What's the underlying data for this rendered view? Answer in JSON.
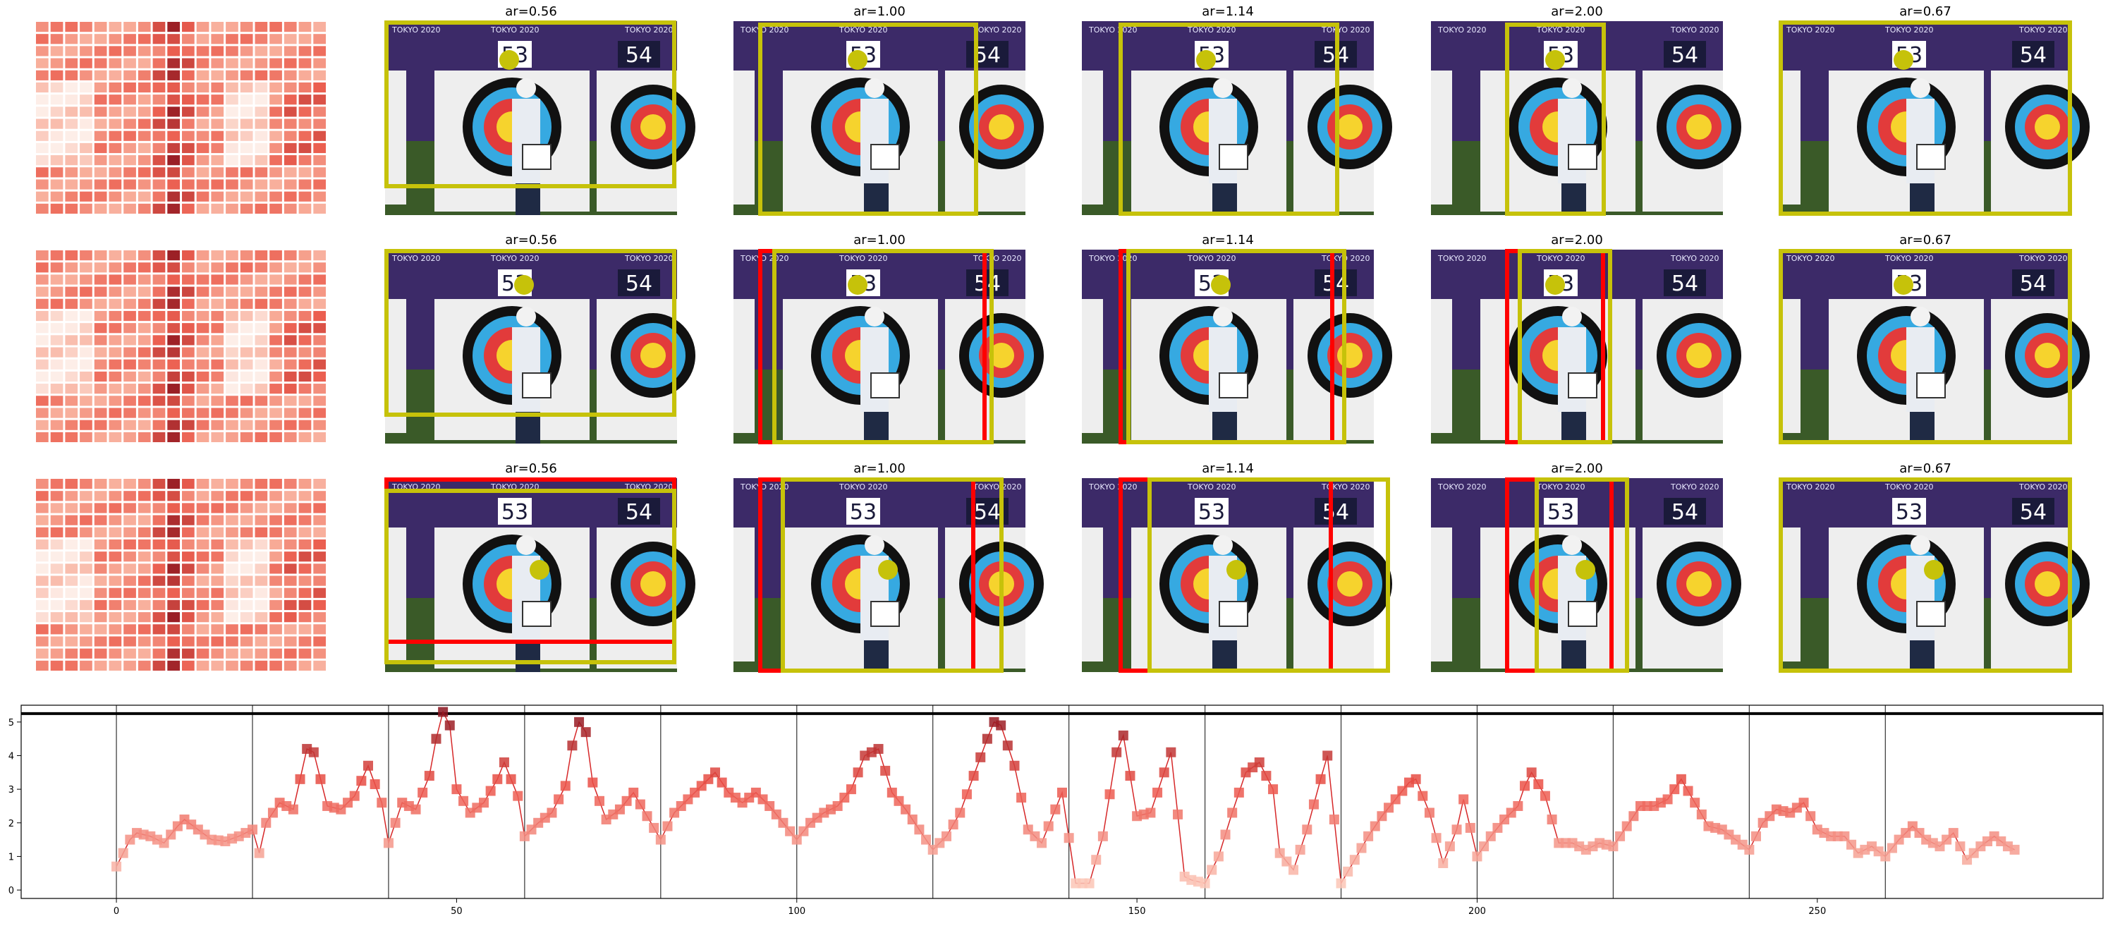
{
  "grid": {
    "rows": 3,
    "aspect_ratios": [
      "ar=0.56",
      "ar=1.00",
      "ar=1.14",
      "ar=2.00",
      "ar=0.67"
    ],
    "photo_text": {
      "left_number": "53",
      "right_number": "54",
      "banner": "TOKYO 2020"
    },
    "colors": {
      "crop_box": "#c6c20a",
      "rejected_box": "#ff0000",
      "point": "#c6c20a",
      "sky": "#3c2a68",
      "target_board": "#eeeeee"
    }
  },
  "chart_data": {
    "type": "line",
    "x_ticks": [
      0,
      50,
      100,
      150,
      200,
      250
    ],
    "y_ticks": [
      0,
      1,
      2,
      3,
      4,
      5
    ],
    "xlim": [
      -14,
      292
    ],
    "ylim": [
      -0.25,
      5.5
    ],
    "horizontal_line_y": 5.25,
    "vertical_lines_x": [
      0,
      20,
      40,
      60,
      80,
      100,
      120,
      140,
      160,
      180,
      200,
      220,
      240,
      260
    ],
    "marker": "square",
    "line_color": "#d62728",
    "x_max": 279,
    "anchors": [
      [
        0,
        0.7
      ],
      [
        2,
        1.5
      ],
      [
        3,
        1.7
      ],
      [
        5,
        1.6
      ],
      [
        7,
        1.4
      ],
      [
        9,
        1.9
      ],
      [
        10,
        2.1
      ],
      [
        12,
        1.8
      ],
      [
        14,
        1.5
      ],
      [
        16,
        1.45
      ],
      [
        18,
        1.6
      ],
      [
        20,
        1.8
      ],
      [
        21,
        1.1
      ],
      [
        22,
        2.0
      ],
      [
        24,
        2.6
      ],
      [
        26,
        2.4
      ],
      [
        28,
        4.2
      ],
      [
        29,
        4.1
      ],
      [
        31,
        2.5
      ],
      [
        33,
        2.4
      ],
      [
        35,
        2.8
      ],
      [
        37,
        3.7
      ],
      [
        39,
        2.6
      ],
      [
        40,
        1.4
      ],
      [
        42,
        2.6
      ],
      [
        44,
        2.4
      ],
      [
        46,
        3.4
      ],
      [
        47,
        4.5
      ],
      [
        48,
        5.3
      ],
      [
        49,
        4.9
      ],
      [
        50,
        3.0
      ],
      [
        52,
        2.3
      ],
      [
        54,
        2.6
      ],
      [
        56,
        3.3
      ],
      [
        57,
        3.8
      ],
      [
        59,
        2.8
      ],
      [
        60,
        1.6
      ],
      [
        62,
        2.0
      ],
      [
        64,
        2.3
      ],
      [
        66,
        3.1
      ],
      [
        67,
        4.3
      ],
      [
        68,
        5.0
      ],
      [
        69,
        4.7
      ],
      [
        70,
        3.2
      ],
      [
        72,
        2.1
      ],
      [
        74,
        2.4
      ],
      [
        76,
        2.9
      ],
      [
        78,
        2.2
      ],
      [
        80,
        1.5
      ],
      [
        82,
        2.3
      ],
      [
        84,
        2.7
      ],
      [
        86,
        3.1
      ],
      [
        88,
        3.5
      ],
      [
        90,
        2.9
      ],
      [
        92,
        2.6
      ],
      [
        94,
        2.9
      ],
      [
        96,
        2.5
      ],
      [
        98,
        2.0
      ],
      [
        100,
        1.5
      ],
      [
        102,
        2.0
      ],
      [
        104,
        2.3
      ],
      [
        106,
        2.5
      ],
      [
        108,
        3.0
      ],
      [
        110,
        4.0
      ],
      [
        112,
        4.2
      ],
      [
        114,
        2.9
      ],
      [
        116,
        2.4
      ],
      [
        118,
        1.8
      ],
      [
        120,
        1.2
      ],
      [
        122,
        1.6
      ],
      [
        124,
        2.3
      ],
      [
        126,
        3.4
      ],
      [
        128,
        4.5
      ],
      [
        129,
        5.0
      ],
      [
        130,
        4.9
      ],
      [
        132,
        3.7
      ],
      [
        134,
        1.8
      ],
      [
        136,
        1.4
      ],
      [
        138,
        2.4
      ],
      [
        139,
        2.9
      ],
      [
        141,
        0.2
      ],
      [
        143,
        0.2
      ],
      [
        145,
        1.6
      ],
      [
        147,
        4.1
      ],
      [
        148,
        4.6
      ],
      [
        150,
        2.2
      ],
      [
        152,
        2.3
      ],
      [
        154,
        3.5
      ],
      [
        155,
        4.1
      ],
      [
        157,
        0.4
      ],
      [
        158,
        0.3
      ],
      [
        160,
        0.2
      ],
      [
        162,
        1.0
      ],
      [
        164,
        2.3
      ],
      [
        166,
        3.5
      ],
      [
        168,
        3.8
      ],
      [
        170,
        3.0
      ],
      [
        171,
        1.1
      ],
      [
        173,
        0.6
      ],
      [
        175,
        1.8
      ],
      [
        177,
        3.3
      ],
      [
        178,
        4.0
      ],
      [
        180,
        0.2
      ],
      [
        182,
        0.9
      ],
      [
        184,
        1.6
      ],
      [
        186,
        2.2
      ],
      [
        188,
        2.7
      ],
      [
        190,
        3.2
      ],
      [
        191,
        3.3
      ],
      [
        193,
        2.3
      ],
      [
        195,
        0.8
      ],
      [
        197,
        1.8
      ],
      [
        198,
        2.7
      ],
      [
        200,
        1.0
      ],
      [
        202,
        1.6
      ],
      [
        204,
        2.1
      ],
      [
        206,
        2.5
      ],
      [
        207,
        3.1
      ],
      [
        208,
        3.5
      ],
      [
        210,
        2.8
      ],
      [
        212,
        1.4
      ],
      [
        214,
        1.4
      ],
      [
        216,
        1.2
      ],
      [
        218,
        1.4
      ],
      [
        220,
        1.3
      ],
      [
        222,
        1.9
      ],
      [
        224,
        2.5
      ],
      [
        226,
        2.5
      ],
      [
        228,
        2.7
      ],
      [
        230,
        3.3
      ],
      [
        232,
        2.6
      ],
      [
        234,
        1.9
      ],
      [
        236,
        1.8
      ],
      [
        238,
        1.5
      ],
      [
        240,
        1.2
      ],
      [
        242,
        2.0
      ],
      [
        244,
        2.4
      ],
      [
        246,
        2.3
      ],
      [
        248,
        2.6
      ],
      [
        250,
        1.8
      ],
      [
        252,
        1.6
      ],
      [
        254,
        1.6
      ],
      [
        256,
        1.1
      ],
      [
        258,
        1.3
      ],
      [
        260,
        1.0
      ],
      [
        262,
        1.5
      ],
      [
        264,
        1.9
      ],
      [
        266,
        1.5
      ],
      [
        268,
        1.3
      ],
      [
        270,
        1.7
      ],
      [
        272,
        0.9
      ],
      [
        274,
        1.3
      ],
      [
        276,
        1.6
      ],
      [
        278,
        1.3
      ],
      [
        279,
        1.2
      ]
    ]
  }
}
